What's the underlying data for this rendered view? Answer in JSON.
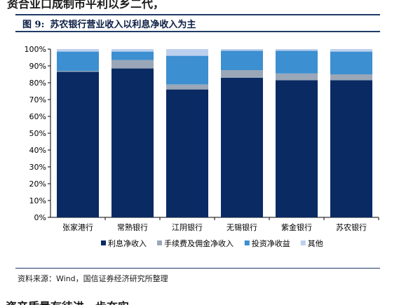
{
  "top_cut_text": "资合业口成制市平利以乡二代，",
  "figure": {
    "label": "图 9:",
    "title": "苏农银行营业收入以利息净收入为主"
  },
  "source": "资料来源：Wind，国信证券经济研究所整理",
  "bottom_cut_text": "资产质量有待进一步夯实",
  "colors": {
    "header_rule": "#1f3a68",
    "series": [
      "#0a2a63",
      "#9aa7b8",
      "#3c8fd0",
      "#bcd0ee"
    ]
  },
  "chart_data": {
    "type": "bar",
    "stacked": true,
    "categories": [
      "张家港行",
      "常熟银行",
      "江阴银行",
      "无锡银行",
      "紫金银行",
      "苏农银行"
    ],
    "series": [
      {
        "name": "利息净收入",
        "values": [
          86.5,
          88.5,
          76.0,
          83.0,
          81.5,
          81.5
        ]
      },
      {
        "name": "手续费及佣金净收入",
        "values": [
          0.5,
          5.0,
          3.0,
          4.5,
          4.0,
          3.5
        ]
      },
      {
        "name": "投资净收益",
        "values": [
          11.5,
          5.0,
          17.0,
          11.5,
          13.5,
          13.5
        ]
      },
      {
        "name": "其他",
        "values": [
          1.5,
          1.5,
          4.0,
          1.0,
          1.0,
          1.5
        ]
      }
    ],
    "ylim": [
      0,
      100
    ],
    "yticks": [
      "0%",
      "10%",
      "20%",
      "30%",
      "40%",
      "50%",
      "60%",
      "70%",
      "80%",
      "90%",
      "100%"
    ],
    "legend_position": "bottom",
    "grid": false
  }
}
